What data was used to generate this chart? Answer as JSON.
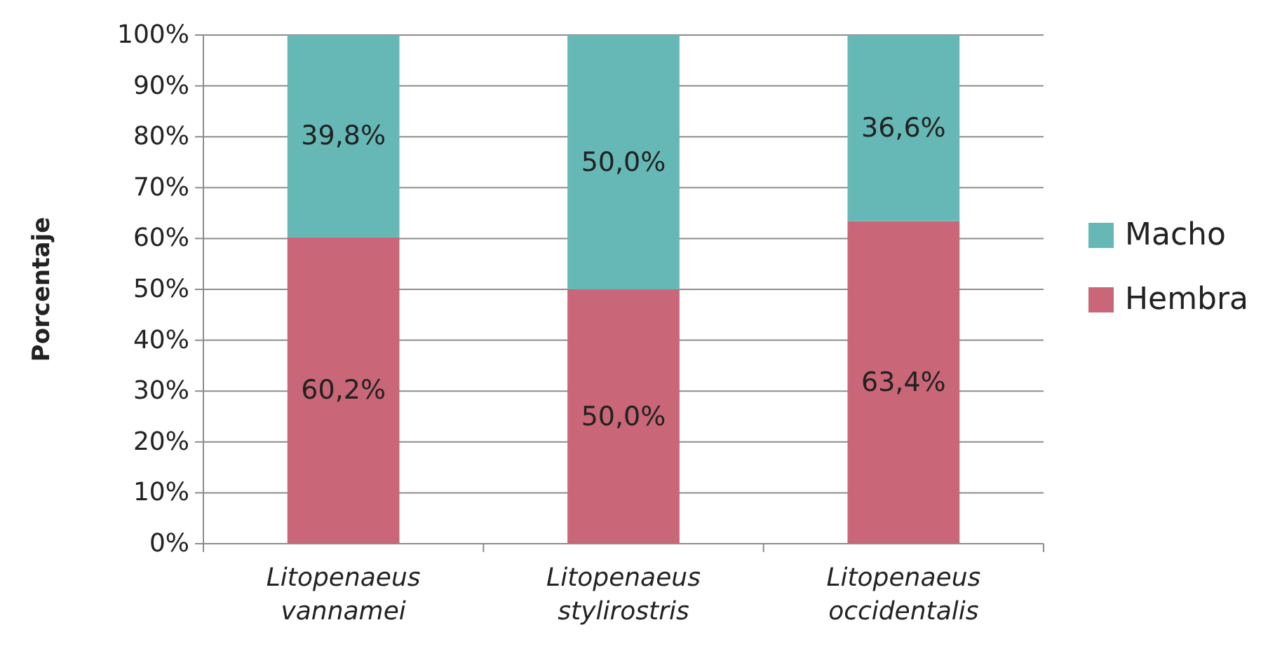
{
  "chart_data": {
    "type": "bar",
    "stacked": true,
    "ylabel": "Porcentaje",
    "categories": [
      "Litopenaeus vannamei",
      "Litopenaeus stylirostris",
      "Litopenaeus occidentalis"
    ],
    "series": [
      {
        "name": "Hembra",
        "color": "#c96677",
        "values": [
          60.2,
          50.0,
          63.4
        ],
        "value_labels": [
          "60,2%",
          "50,0%",
          "63,4%"
        ]
      },
      {
        "name": "Macho",
        "color": "#66b8b6",
        "values": [
          39.8,
          50.0,
          36.6
        ],
        "value_labels": [
          "39,8%",
          "50,0%",
          "36,6%"
        ]
      }
    ],
    "ylim": [
      0,
      100
    ],
    "yticks": [
      {
        "value": 0,
        "label": "0%"
      },
      {
        "value": 10,
        "label": "10%"
      },
      {
        "value": 20,
        "label": "20%"
      },
      {
        "value": 30,
        "label": "30%"
      },
      {
        "value": 40,
        "label": "40%"
      },
      {
        "value": 50,
        "label": "50%"
      },
      {
        "value": 60,
        "label": "60%"
      },
      {
        "value": 70,
        "label": "70%"
      },
      {
        "value": 80,
        "label": "80%"
      },
      {
        "value": 90,
        "label": "90%"
      },
      {
        "value": 100,
        "label": "100%"
      }
    ],
    "grid": "y",
    "legend": "right"
  }
}
